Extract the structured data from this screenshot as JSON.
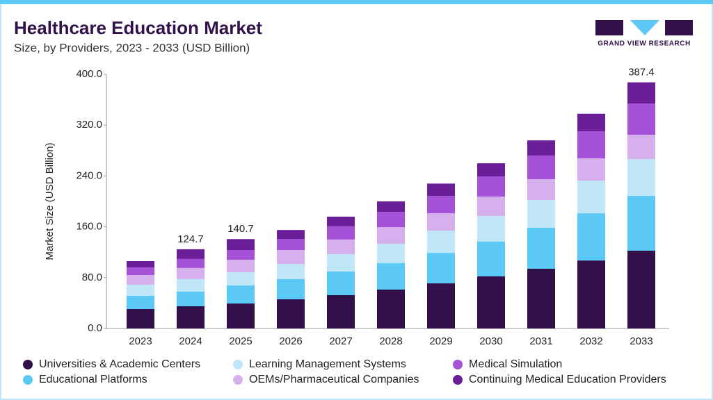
{
  "chart_data": {
    "type": "stacked_bar",
    "title": "Healthcare Education Market",
    "subtitle": "Size, by Providers, 2023 - 2033 (USD Billion)",
    "y_label": "Market Size (USD Billion)",
    "logo_text": "GRAND VIEW RESEARCH",
    "categories": [
      "2023",
      "2024",
      "2025",
      "2026",
      "2027",
      "2028",
      "2029",
      "2030",
      "2031",
      "2032",
      "2033"
    ],
    "series": [
      {
        "name": "Universities & Academic Centers",
        "color": "#32104a",
        "values": [
          30.6,
          35,
          39.3,
          45.9,
          52.5,
          61.2,
          71,
          82,
          94,
          107,
          122.4
        ]
      },
      {
        "name": "Educational Platforms",
        "color": "#5bc8f5",
        "values": [
          20.8,
          23,
          28.4,
          31.7,
          37.2,
          41.5,
          48,
          54.6,
          64.5,
          74.3,
          86.3
        ]
      },
      {
        "name": "Learning Management Systems",
        "color": "#bfe6f7",
        "values": [
          17.5,
          19.7,
          20.8,
          24,
          27.3,
          30.6,
          35,
          40.4,
          43.7,
          51.4,
          57.9
        ]
      },
      {
        "name": "OEMs/Pharmaceutical Companies",
        "color": "#d5b0ec",
        "values": [
          15.3,
          17.5,
          19.7,
          21.9,
          23,
          26.2,
          27.3,
          30.6,
          32.8,
          35,
          38.3
        ]
      },
      {
        "name": "Medical Simulation",
        "color": "#a552d8",
        "values": [
          12,
          14.2,
          15.3,
          17.5,
          20.8,
          24,
          27.3,
          31.7,
          37.2,
          42.6,
          49.2
        ]
      },
      {
        "name": "Continuing Medical Education Providers",
        "color": "#6a1f98",
        "values": [
          9.8,
          15.3,
          17.2,
          14,
          15.2,
          16.5,
          19.4,
          20.7,
          23.8,
          27.7,
          33.3
        ]
      }
    ],
    "totals": [
      null,
      124.7,
      140.7,
      null,
      null,
      null,
      null,
      null,
      null,
      null,
      387.4
    ],
    "ylim": [
      0,
      400
    ],
    "yticks": [
      {
        "value": 0,
        "label": "0.0"
      },
      {
        "value": 80,
        "label": "80.0"
      },
      {
        "value": 160,
        "label": "160.0"
      },
      {
        "value": 240,
        "label": "240.0"
      },
      {
        "value": 320,
        "label": "320.0"
      },
      {
        "value": 400,
        "label": "400.0"
      }
    ]
  }
}
